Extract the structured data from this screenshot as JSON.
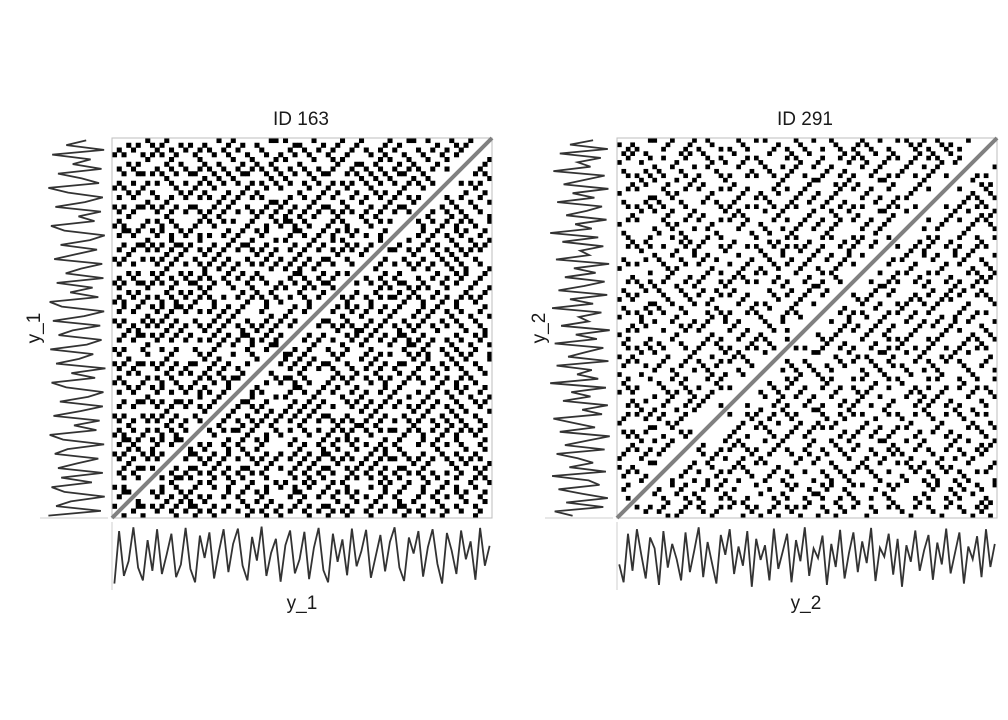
{
  "chart_data": [
    {
      "type": "heatmap",
      "title": "ID 163",
      "xlabel": "y_1",
      "ylabel": "y_1",
      "colors": {
        "recurrence": "#000000",
        "background": "#ffffff",
        "diagonal": "#808080",
        "signal": "#333333"
      },
      "signal": [
        0.1,
        0.92,
        0.22,
        0.45,
        0.98,
        0.35,
        0.15,
        0.78,
        0.3,
        0.95,
        0.25,
        0.55,
        0.88,
        0.2,
        0.4,
        0.97,
        0.33,
        0.12,
        0.85,
        0.5,
        0.9,
        0.18,
        0.6,
        0.95,
        0.28,
        0.72,
        0.96,
        0.38,
        0.15,
        0.83,
        0.46,
        0.99,
        0.22,
        0.58,
        0.8,
        0.13,
        0.7,
        0.93,
        0.26,
        0.48,
        0.91,
        0.17,
        0.66,
        0.97,
        0.31,
        0.12,
        0.88,
        0.44,
        0.79,
        0.23,
        0.96,
        0.37,
        0.61,
        0.94,
        0.19,
        0.52,
        0.86,
        0.29,
        0.75,
        0.98,
        0.35,
        0.14,
        0.82,
        0.57,
        0.92,
        0.21,
        0.67,
        0.95,
        0.41,
        0.1,
        0.89,
        0.62,
        0.25,
        0.93,
        0.48,
        0.76,
        0.16,
        0.97,
        0.38,
        0.69
      ],
      "threshold": 0.14,
      "n": 80
    },
    {
      "type": "heatmap",
      "title": "ID 291",
      "xlabel": "y_2",
      "ylabel": "y_2",
      "colors": {
        "recurrence": "#000000",
        "background": "#ffffff",
        "diagonal": "#808080",
        "signal": "#333333"
      },
      "signal": [
        0.4,
        0.12,
        0.88,
        0.3,
        0.95,
        0.55,
        0.18,
        0.82,
        0.65,
        0.08,
        0.92,
        0.35,
        0.72,
        0.48,
        0.15,
        0.9,
        0.28,
        0.62,
        0.98,
        0.2,
        0.75,
        0.42,
        0.1,
        0.86,
        0.55,
        0.95,
        0.25,
        0.68,
        0.38,
        0.92,
        0.05,
        0.8,
        0.47,
        0.7,
        0.15,
        0.96,
        0.33,
        0.6,
        0.88,
        0.12,
        0.78,
        0.45,
        0.98,
        0.22,
        0.65,
        0.5,
        0.85,
        0.08,
        0.72,
        0.36,
        0.94,
        0.18,
        0.58,
        0.9,
        0.28,
        0.76,
        0.42,
        0.97,
        0.14,
        0.66,
        0.52,
        0.88,
        0.24,
        0.8,
        0.05,
        0.7,
        0.44,
        0.93,
        0.3,
        0.62,
        0.86,
        0.16,
        0.74,
        0.4,
        0.96,
        0.26,
        0.58,
        0.9,
        0.1,
        0.68,
        0.48,
        0.84,
        0.2,
        0.95,
        0.36,
        0.72
      ],
      "threshold": 0.1,
      "n": 86
    }
  ]
}
